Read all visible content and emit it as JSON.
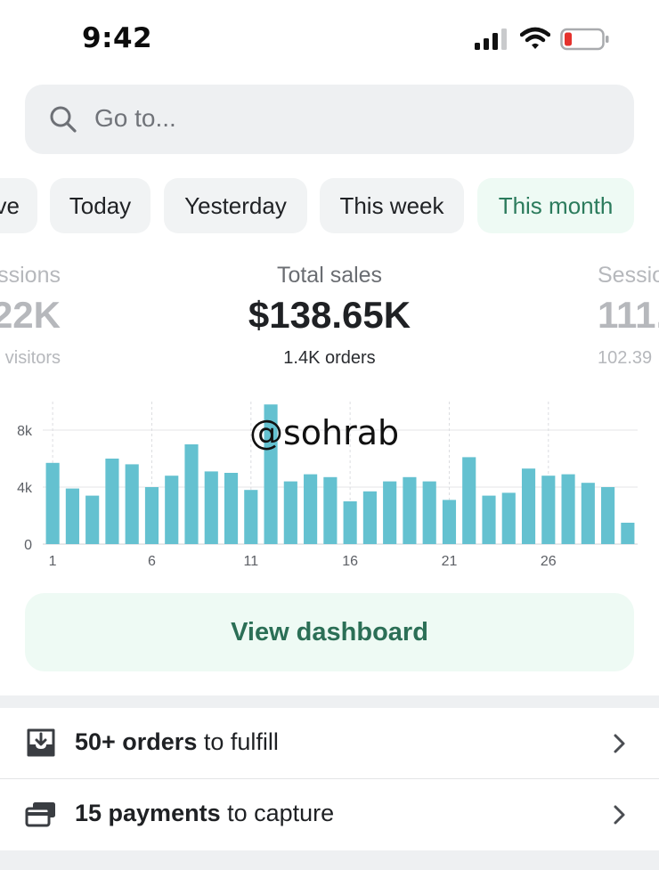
{
  "status_bar": {
    "time": "9:42",
    "icons": [
      "signal-icon",
      "wifi-icon",
      "battery-icon"
    ],
    "battery_color": "#e5322d"
  },
  "search": {
    "placeholder": "Go to..."
  },
  "date_filters": {
    "chips": [
      "ve",
      "Today",
      "Yesterday",
      "This week",
      "This month"
    ],
    "selected": "This month",
    "accent": "#2b7b5c"
  },
  "stats": [
    {
      "label": "ssions",
      "value": "22K",
      "sub": "visitors"
    },
    {
      "label": "Total sales",
      "value": "$138.65K",
      "sub": "1.4K orders"
    },
    {
      "label": "Sessio",
      "value": "111.",
      "sub": "102.39"
    }
  ],
  "watermark": "@sohrab",
  "chart_data": {
    "type": "bar",
    "categories": [
      1,
      2,
      3,
      4,
      5,
      6,
      7,
      8,
      9,
      10,
      11,
      12,
      13,
      14,
      15,
      16,
      17,
      18,
      19,
      20,
      21,
      22,
      23,
      24,
      25,
      26,
      27,
      28,
      29,
      30
    ],
    "values": [
      5700,
      3900,
      3400,
      6000,
      5600,
      4000,
      4800,
      7000,
      5100,
      5000,
      3800,
      9800,
      4400,
      4900,
      4700,
      3000,
      3700,
      4400,
      4700,
      4400,
      3100,
      6100,
      3400,
      3600,
      5300,
      4800,
      4900,
      4300,
      4000,
      1500
    ],
    "x_tick_labels": [
      "1",
      "6",
      "11",
      "16",
      "21",
      "26"
    ],
    "y_tick_labels": [
      "8k",
      "4k",
      "0"
    ],
    "y_ticks": [
      8000,
      4000,
      0
    ],
    "ylim": [
      0,
      10000
    ],
    "bar_color": "#64c1d0",
    "title": "",
    "xlabel": "",
    "ylabel": ""
  },
  "dashboard_button": {
    "label": "View dashboard"
  },
  "tasks": [
    {
      "bold": "50+ orders",
      "rest": " to fulfill",
      "icon": "inbox-download-icon"
    },
    {
      "bold": "15 payments",
      "rest": " to capture",
      "icon": "credit-card-icon"
    }
  ]
}
